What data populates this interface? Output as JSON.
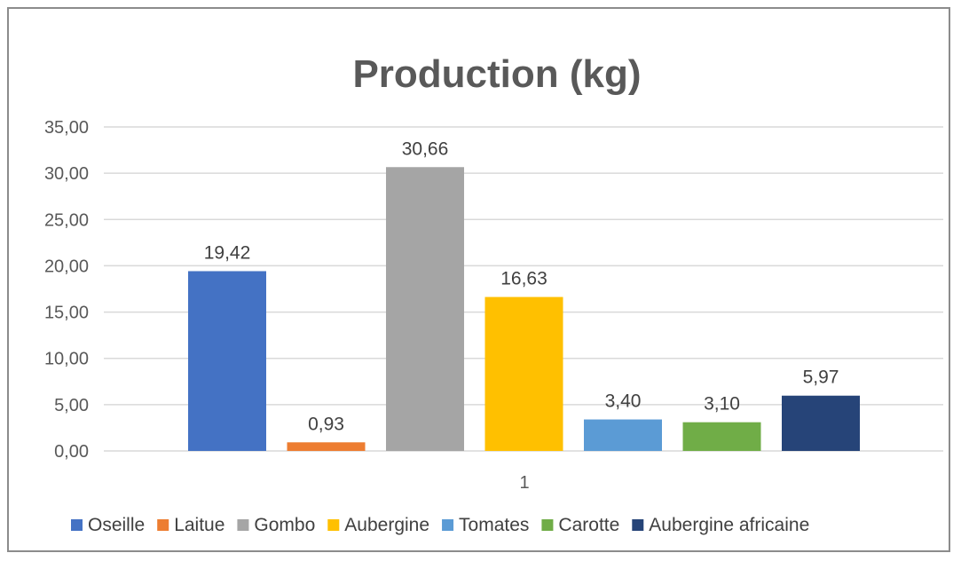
{
  "chart_data": {
    "type": "bar",
    "title": "Production (kg)",
    "categories": [
      "1"
    ],
    "ylim": [
      0,
      35
    ],
    "ytick_step": 5,
    "ytick_labels": [
      "0,00",
      "5,00",
      "10,00",
      "15,00",
      "20,00",
      "25,00",
      "30,00",
      "35,00"
    ],
    "grid": true,
    "legend_position": "bottom",
    "series": [
      {
        "name": "Oseille",
        "values": [
          19.42
        ],
        "label": "19,42",
        "color": "#4472c4"
      },
      {
        "name": "Laitue",
        "values": [
          0.93
        ],
        "label": "0,93",
        "color": "#ed7d31"
      },
      {
        "name": "Gombo",
        "values": [
          30.66
        ],
        "label": "30,66",
        "color": "#a5a5a5"
      },
      {
        "name": "Aubergine",
        "values": [
          16.63
        ],
        "label": "16,63",
        "color": "#ffc000"
      },
      {
        "name": "Tomates",
        "values": [
          3.4
        ],
        "label": "3,40",
        "color": "#5b9bd5"
      },
      {
        "name": "Carotte",
        "values": [
          3.1
        ],
        "label": "3,10",
        "color": "#70ad47"
      },
      {
        "name": "Aubergine africaine",
        "values": [
          5.97
        ],
        "label": "5,97",
        "color": "#264478"
      }
    ]
  }
}
